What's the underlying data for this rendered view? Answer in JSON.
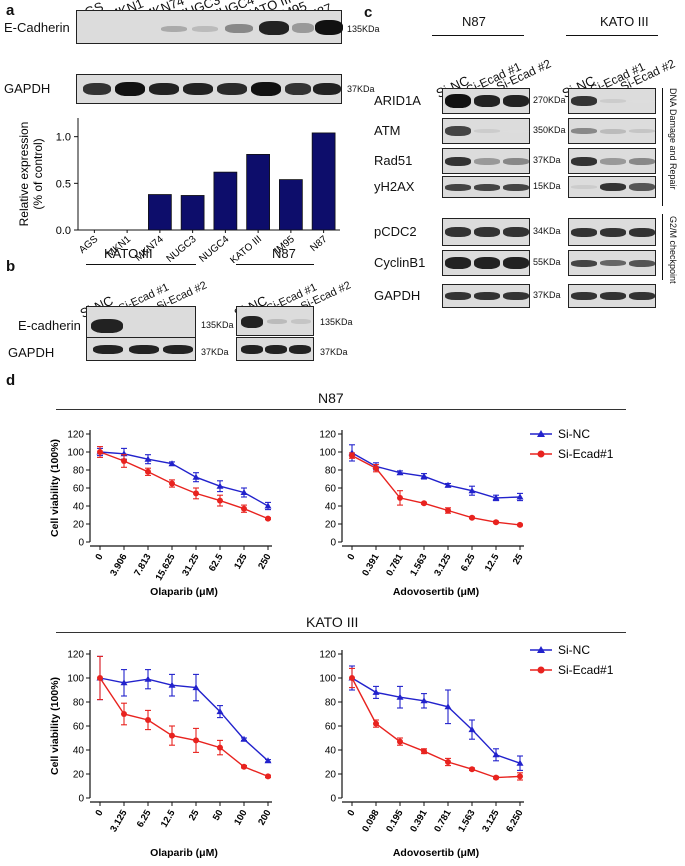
{
  "panel_a": {
    "letter": "a",
    "cell_lines": [
      "AGS",
      "MKN1",
      "MKN74",
      "NUGC3",
      "NUGC4",
      "KATO III",
      "IM95",
      "N87"
    ],
    "rows": [
      {
        "label": "E-Cadherin",
        "size": "135KDa"
      },
      {
        "label": "GAPDH",
        "size": "37KDa"
      }
    ]
  },
  "panel_b": {
    "letter": "b",
    "groups": [
      {
        "title": "KATO III",
        "lanes": [
          "Si-NC",
          "Si-Ecad #1",
          "Si-Ecad #2"
        ]
      },
      {
        "title": "N87",
        "lanes": [
          "Si-NC",
          "Si-Ecad #1",
          "Si-Ecad #2"
        ]
      }
    ],
    "rows": [
      {
        "label": "E-cadherin",
        "size": "135KDa"
      },
      {
        "label": "GAPDH",
        "size": "37KDa"
      }
    ]
  },
  "panel_c": {
    "letter": "c",
    "groups": [
      {
        "title": "N87",
        "lanes": [
          "Si-NC",
          "Si-Ecad #1",
          "Si-Ecad #2"
        ]
      },
      {
        "title": "KATO III",
        "lanes": [
          "Si-NC",
          "Si-Ecad #1",
          "Si-Ecad #2"
        ]
      }
    ],
    "rows": [
      {
        "label": "ARID1A",
        "size": "270KDa"
      },
      {
        "label": "ATM",
        "size": "350KDa"
      },
      {
        "label": "Rad51",
        "size": "37KDa"
      },
      {
        "label": "yH2AX",
        "size": "15KDa"
      },
      {
        "label": "pCDC2",
        "size": "34KDa"
      },
      {
        "label": "CyclinB1",
        "size": "55KDa"
      },
      {
        "label": "GAPDH",
        "size": "37KDa"
      }
    ],
    "bracket_dna": "DNA Damage and Repair",
    "bracket_g2m": "G2/M checkpoint"
  },
  "panel_d": {
    "letter": "d",
    "row_titles": [
      "N87",
      "KATO III"
    ]
  },
  "chart_data": [
    {
      "id": "bar_a",
      "type": "bar",
      "title": "",
      "ylabel": "Relative expression (% of control)",
      "xlabel": "",
      "categories": [
        "AGS",
        "MKN1",
        "MKN74",
        "NUGC3",
        "NUGC4",
        "KATO III",
        "IM95",
        "N87"
      ],
      "values": [
        0,
        0,
        0.38,
        0.37,
        0.62,
        0.81,
        0.54,
        1.04
      ],
      "ylim": [
        0,
        1.2
      ],
      "yticks": [
        "0.0",
        "0.5",
        "1.0"
      ],
      "bar_color": "#0d0d6b"
    },
    {
      "id": "n87_olaparib",
      "type": "line",
      "xlabel": "Olaparib (μM)",
      "ylabel": "Cell viability (100%)",
      "categories": [
        "0",
        "3.906",
        "7.813",
        "15.625",
        "31.25",
        "62.5",
        "125",
        "250"
      ],
      "yticks": [
        "0",
        "20",
        "40",
        "60",
        "80",
        "100",
        "120"
      ],
      "ylim": [
        0,
        120
      ],
      "series": [
        {
          "name": "Si-NC",
          "color": "#2222cc",
          "marker": "triangle",
          "values": [
            100,
            98,
            92,
            87,
            72,
            62,
            55,
            40
          ],
          "err": [
            4,
            6,
            5,
            2,
            5,
            6,
            5,
            4
          ]
        },
        {
          "name": "Si-Ecad#1",
          "color": "#e8231f",
          "marker": "circle",
          "values": [
            100,
            90,
            78,
            65,
            54,
            46,
            37,
            26
          ],
          "err": [
            6,
            7,
            4,
            4,
            6,
            6,
            4,
            1
          ]
        }
      ],
      "legend": false
    },
    {
      "id": "n87_adavosertib",
      "type": "line",
      "xlabel": "Adovosertib (μM)",
      "ylabel": "Cell viability (100%)",
      "categories": [
        "0",
        "0.391",
        "0.781",
        "1.563",
        "3.125",
        "6.25",
        "12.5",
        "25"
      ],
      "yticks": [
        "0",
        "20",
        "40",
        "60",
        "80",
        "100",
        "120"
      ],
      "ylim": [
        0,
        120
      ],
      "series": [
        {
          "name": "Si-NC",
          "color": "#2222cc",
          "marker": "triangle",
          "values": [
            99,
            84,
            77,
            73,
            63,
            57,
            49,
            50
          ],
          "err": [
            9,
            4,
            2,
            3,
            2,
            5,
            3,
            4
          ]
        },
        {
          "name": "Si-Ecad#1",
          "color": "#e8231f",
          "marker": "circle",
          "values": [
            96,
            82,
            49,
            43,
            35,
            27,
            22,
            19
          ],
          "err": [
            3,
            4,
            8,
            1,
            3,
            1,
            1,
            1
          ]
        }
      ],
      "legend": true
    },
    {
      "id": "kato_olaparib",
      "type": "line",
      "xlabel": "Olaparib (μM)",
      "ylabel": "Cell viability (100%)",
      "categories": [
        "0",
        "3.125",
        "6.25",
        "12.5",
        "25",
        "50",
        "100",
        "200"
      ],
      "yticks": [
        "0",
        "20",
        "40",
        "60",
        "80",
        "100",
        "120"
      ],
      "ylim": [
        0,
        120
      ],
      "series": [
        {
          "name": "Si-NC",
          "color": "#2222cc",
          "marker": "triangle",
          "values": [
            100,
            96,
            99,
            94,
            92,
            72,
            49,
            31
          ],
          "err": [
            18,
            11,
            8,
            9,
            11,
            5,
            1,
            1
          ]
        },
        {
          "name": "Si-Ecad#1",
          "color": "#e8231f",
          "marker": "circle",
          "values": [
            100,
            70,
            65,
            52,
            48,
            42,
            26,
            18
          ],
          "err": [
            18,
            9,
            8,
            8,
            10,
            6,
            1,
            1
          ]
        }
      ],
      "legend": false
    },
    {
      "id": "kato_adavosertib",
      "type": "line",
      "xlabel": "Adovosertib (μM)",
      "ylabel": "Cell viability (100%)",
      "categories": [
        "0",
        "0.098",
        "0.195",
        "0.391",
        "0.781",
        "1.563",
        "3.125",
        "6.250"
      ],
      "yticks": [
        "0",
        "20",
        "40",
        "60",
        "80",
        "100",
        "120"
      ],
      "ylim": [
        0,
        120
      ],
      "series": [
        {
          "name": "Si-NC",
          "color": "#2222cc",
          "marker": "triangle",
          "values": [
            100,
            88,
            84,
            81,
            76,
            57,
            36,
            29
          ],
          "err": [
            10,
            5,
            9,
            6,
            14,
            8,
            5,
            6
          ]
        },
        {
          "name": "Si-Ecad#1",
          "color": "#e8231f",
          "marker": "circle",
          "values": [
            100,
            62,
            47,
            39,
            30,
            24,
            17,
            18
          ],
          "err": [
            8,
            3,
            3,
            2,
            3,
            1,
            1,
            3
          ]
        }
      ],
      "legend": true
    }
  ]
}
